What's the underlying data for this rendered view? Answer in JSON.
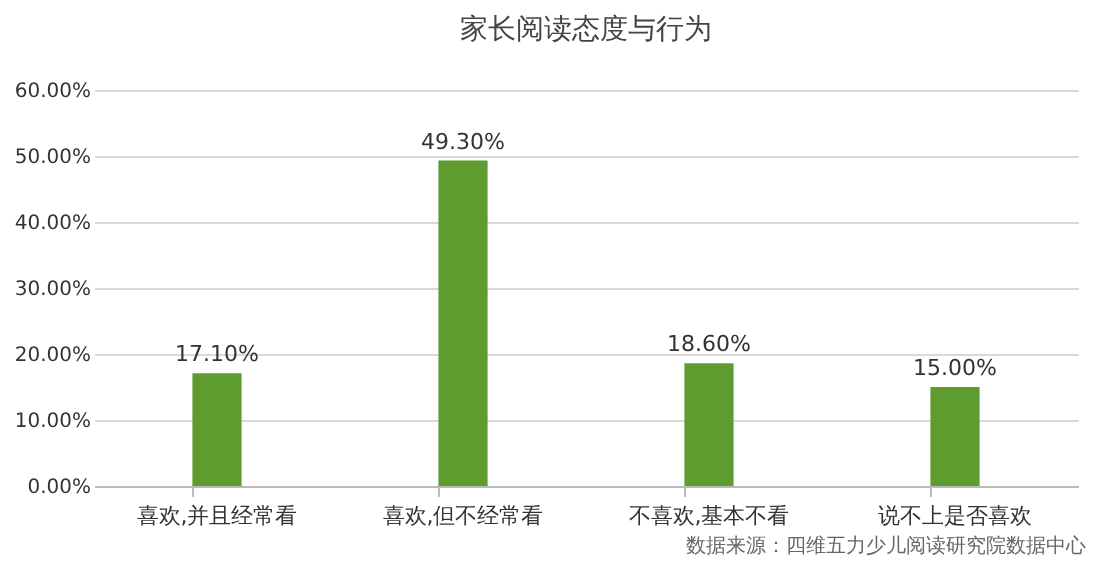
{
  "chart_data": {
    "type": "bar",
    "title": "家长阅读态度与行为",
    "categories": [
      "喜欢,并且经常看",
      "喜欢,但不经常看",
      "不喜欢,基本不看",
      "说不上是否喜欢"
    ],
    "values": [
      17.1,
      49.3,
      18.6,
      15.0
    ],
    "value_labels": [
      "17.10%",
      "49.30%",
      "18.60%",
      "15.00%"
    ],
    "color": "#5e9c2f",
    "ylim": [
      0,
      60
    ],
    "yticks": [
      {
        "value": 0,
        "label": "0.00%"
      },
      {
        "value": 10,
        "label": "10.00%"
      },
      {
        "value": 20,
        "label": "20.00%"
      },
      {
        "value": 30,
        "label": "30.00%"
      },
      {
        "value": 40,
        "label": "40.00%"
      },
      {
        "value": 50,
        "label": "50.00%"
      },
      {
        "value": 60,
        "label": "60.00%"
      }
    ],
    "grid": "y",
    "annotations": [
      "数据来源：四维五力少儿阅读研究院数据中心"
    ]
  }
}
